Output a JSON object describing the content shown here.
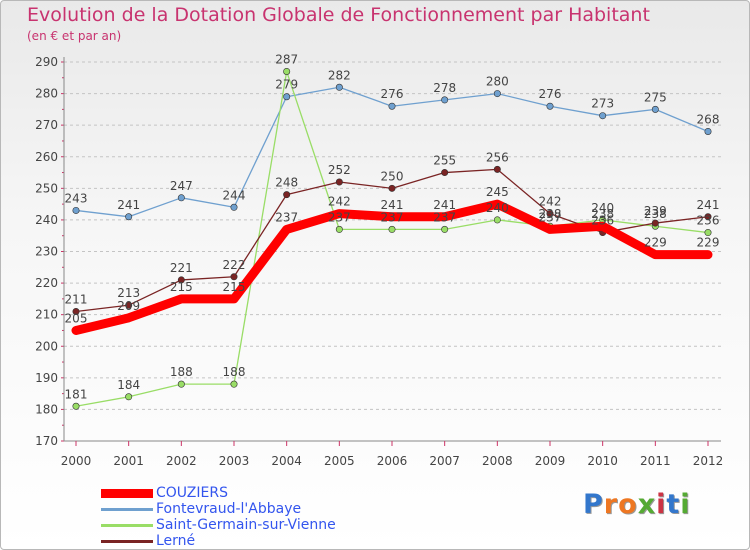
{
  "chart_data": {
    "type": "line",
    "title": "Evolution de la Dotation Globale de Fonctionnement par Habitant",
    "subtitle": "(en € et par an)",
    "xlabel": "",
    "ylabel": "",
    "x": [
      "2000",
      "2001",
      "2002",
      "2003",
      "2004",
      "2005",
      "2006",
      "2007",
      "2008",
      "2009",
      "2010",
      "2011",
      "2012"
    ],
    "ylim": [
      170,
      290
    ],
    "yticks": [
      170,
      180,
      190,
      200,
      210,
      220,
      230,
      240,
      250,
      260,
      270,
      280,
      290
    ],
    "grid": "horizontal dashed",
    "legend_position": "bottom-left",
    "series": [
      {
        "name": "COUZIERS",
        "color": "#ff0000",
        "values": [
          205,
          209,
          215,
          215,
          237,
          242,
          241,
          241,
          245,
          237,
          238,
          229,
          229
        ]
      },
      {
        "name": "Fontevraud-l'Abbaye",
        "color": "#6fa0cf",
        "values": [
          243,
          241,
          247,
          244,
          279,
          282,
          276,
          278,
          280,
          276,
          273,
          275,
          268
        ]
      },
      {
        "name": "Saint-Germain-sur-Vienne",
        "color": "#99dd66",
        "values": [
          181,
          184,
          188,
          188,
          287,
          237,
          237,
          237,
          240,
          238,
          240,
          238,
          236
        ]
      },
      {
        "name": "Lerné",
        "color": "#7a2424",
        "values": [
          211,
          213,
          221,
          222,
          248,
          252,
          250,
          255,
          256,
          242,
          236,
          239,
          241
        ]
      }
    ]
  },
  "brand": {
    "text": "Proxiti",
    "letter_colors": [
      "#3377cc",
      "#ee7722",
      "#ee7722",
      "#55aa33",
      "#cc3344",
      "#3377cc",
      "#55aa33"
    ]
  }
}
